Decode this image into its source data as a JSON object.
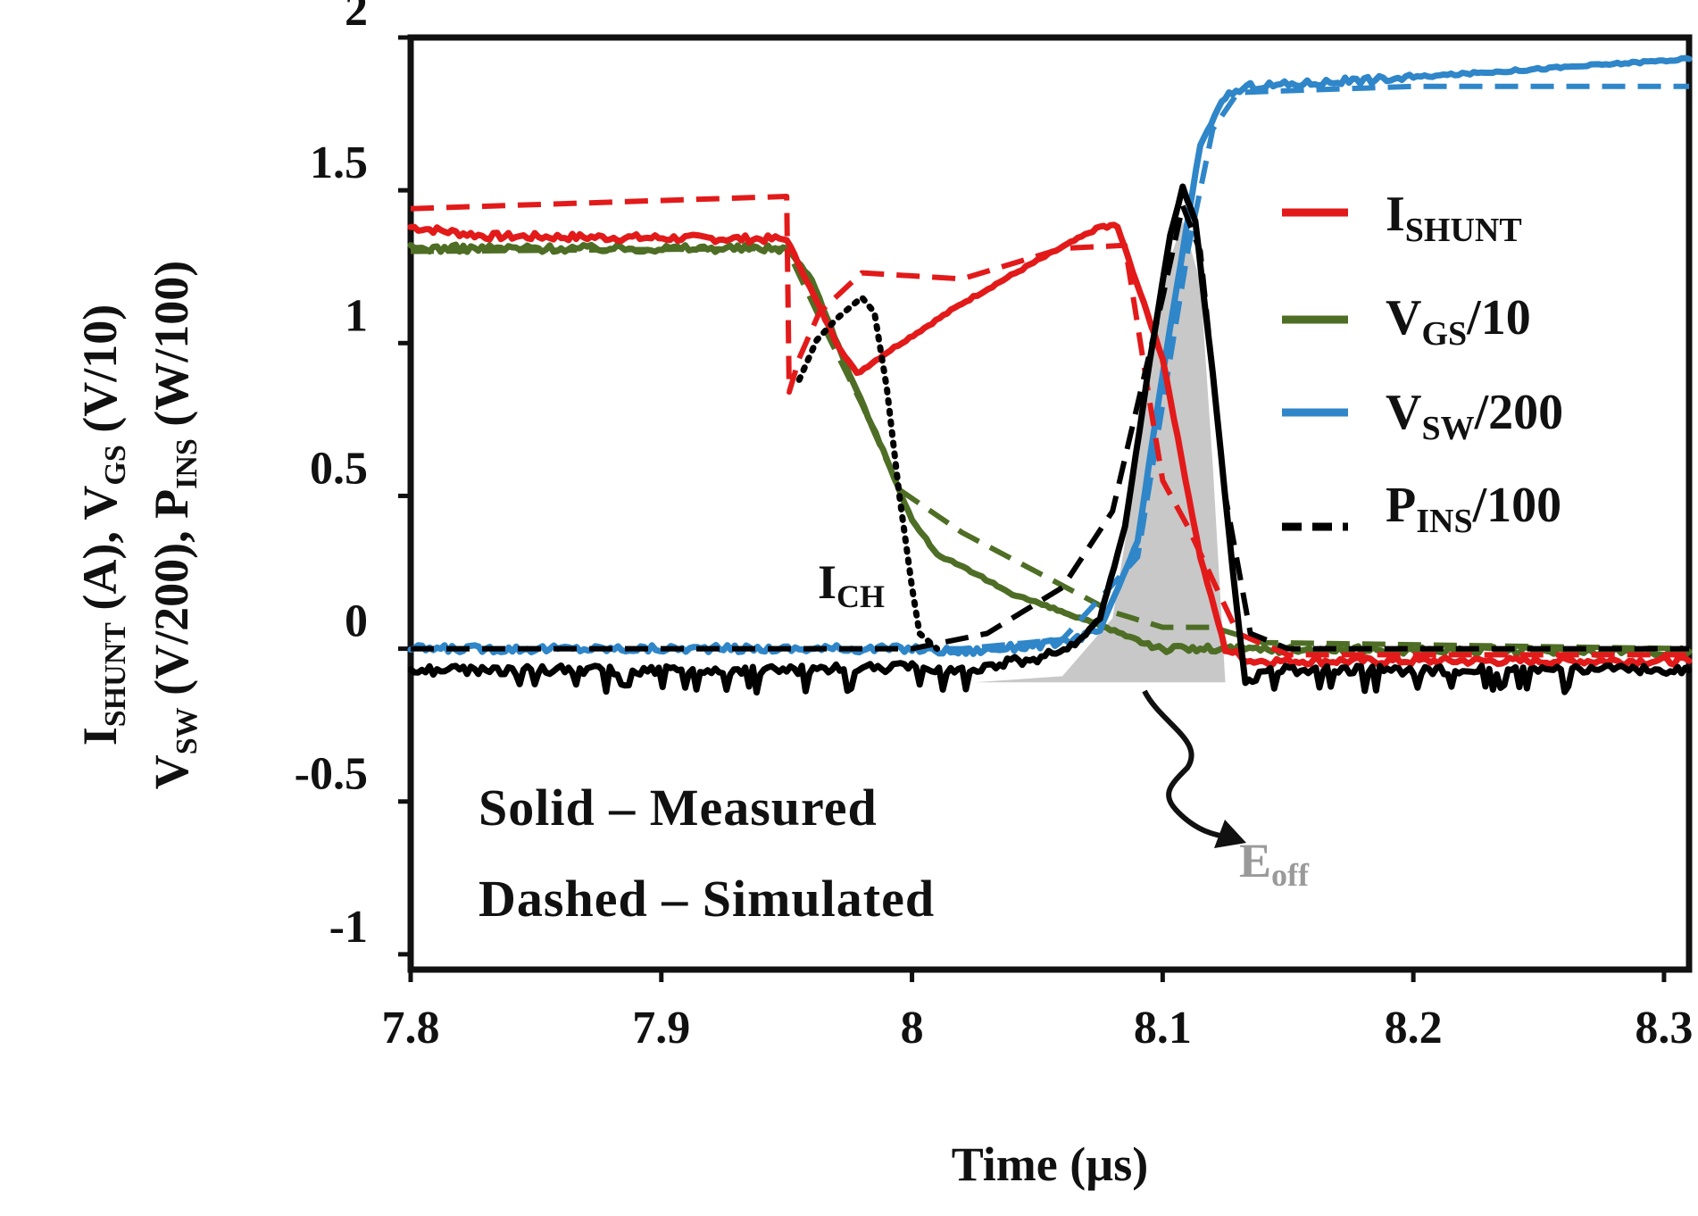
{
  "chart_data": {
    "type": "line",
    "x_axis": {
      "label": "Time (µs)",
      "range": [
        7.8,
        8.31
      ],
      "ticks": [
        7.8,
        7.9,
        8.0,
        8.1,
        8.2,
        8.3
      ],
      "tick_labels": [
        "7.8",
        "7.9",
        "8",
        "8.1",
        "8.2",
        "8.3"
      ]
    },
    "y_axis": {
      "label_line1": {
        "main1": "I",
        "sub1": "SHUNT",
        "main2": " (A),  V",
        "sub2": "GS",
        "main3": " (V/10)"
      },
      "label_line2": {
        "main1": "V",
        "sub1": "SW",
        "main2": " (V/200), P",
        "sub2": "INS",
        "main3": " (W/100)"
      },
      "range": [
        -1.05,
        2.0
      ],
      "ticks": [
        -1,
        -0.5,
        0,
        0.5,
        1,
        1.5,
        2
      ],
      "tick_labels": [
        "-1",
        "-0.5",
        "0",
        "0.5",
        "1",
        "1.5",
        "2"
      ]
    },
    "series": [
      {
        "name": "I_SHUNT",
        "legend_main": "I",
        "legend_sub": "SHUNT",
        "legend_suffix": "",
        "color": "#e21a1a",
        "style": "measured",
        "points": [
          [
            7.8,
            1.38
          ],
          [
            7.83,
            1.35
          ],
          [
            7.95,
            1.34
          ],
          [
            7.97,
            1.0
          ],
          [
            7.978,
            0.9
          ],
          [
            7.99,
            0.97
          ],
          [
            8.02,
            1.13
          ],
          [
            8.05,
            1.27
          ],
          [
            8.075,
            1.38
          ],
          [
            8.082,
            1.38
          ],
          [
            8.1,
            0.95
          ],
          [
            8.115,
            0.3
          ],
          [
            8.125,
            0.0
          ],
          [
            8.135,
            -0.04
          ],
          [
            8.31,
            -0.04
          ]
        ]
      },
      {
        "name": "I_SHUNT_sim",
        "color": "#e21a1a",
        "style": "simulated",
        "points": [
          [
            7.8,
            1.44
          ],
          [
            7.95,
            1.48
          ],
          [
            7.951,
            0.84
          ],
          [
            7.955,
            0.95
          ],
          [
            7.963,
            1.1
          ],
          [
            7.98,
            1.23
          ],
          [
            8.02,
            1.21
          ],
          [
            8.06,
            1.31
          ],
          [
            8.085,
            1.32
          ],
          [
            8.095,
            0.8
          ],
          [
            8.1,
            0.55
          ],
          [
            8.11,
            0.4
          ],
          [
            8.13,
            0.05
          ],
          [
            8.15,
            -0.02
          ],
          [
            8.31,
            -0.02
          ]
        ]
      },
      {
        "name": "V_GS/10",
        "legend_main": "V",
        "legend_sub": "GS",
        "legend_suffix": "/10",
        "color": "#4e6e25",
        "style": "measured",
        "points": [
          [
            7.8,
            1.31
          ],
          [
            7.95,
            1.31
          ],
          [
            7.96,
            1.21
          ],
          [
            7.975,
            0.9
          ],
          [
            7.99,
            0.62
          ],
          [
            8.0,
            0.42
          ],
          [
            8.01,
            0.31
          ],
          [
            8.04,
            0.18
          ],
          [
            8.07,
            0.09
          ],
          [
            8.09,
            0.03
          ],
          [
            8.1,
            0.0
          ],
          [
            8.31,
            -0.01
          ]
        ]
      },
      {
        "name": "V_GS_sim",
        "color": "#4e6e25",
        "style": "simulated",
        "points": [
          [
            7.8,
            1.3
          ],
          [
            7.95,
            1.31
          ],
          [
            7.965,
            1.05
          ],
          [
            7.98,
            0.8
          ],
          [
            7.995,
            0.52
          ],
          [
            8.02,
            0.38
          ],
          [
            8.05,
            0.25
          ],
          [
            8.08,
            0.12
          ],
          [
            8.1,
            0.07
          ],
          [
            8.12,
            0.07
          ],
          [
            8.14,
            0.02
          ],
          [
            8.31,
            0.0
          ]
        ]
      },
      {
        "name": "V_SW/200",
        "legend_main": "V",
        "legend_sub": "SW",
        "legend_suffix": "/200",
        "color": "#2f86c9",
        "style": "measured",
        "points": [
          [
            7.8,
            0.0
          ],
          [
            8.0,
            0.0
          ],
          [
            8.02,
            -0.01
          ],
          [
            8.06,
            0.02
          ],
          [
            8.075,
            0.06
          ],
          [
            8.09,
            0.35
          ],
          [
            8.1,
            0.9
          ],
          [
            8.11,
            1.4
          ],
          [
            8.115,
            1.65
          ],
          [
            8.125,
            1.81
          ],
          [
            8.135,
            1.84
          ],
          [
            8.2,
            1.87
          ],
          [
            8.31,
            1.93
          ]
        ]
      },
      {
        "name": "V_SW_sim",
        "color": "#2f86c9",
        "style": "simulated",
        "points": [
          [
            7.8,
            0.0
          ],
          [
            8.02,
            0.0
          ],
          [
            8.06,
            0.03
          ],
          [
            8.09,
            0.3
          ],
          [
            8.1,
            0.8
          ],
          [
            8.11,
            1.3
          ],
          [
            8.12,
            1.7
          ],
          [
            8.13,
            1.82
          ],
          [
            8.2,
            1.84
          ],
          [
            8.31,
            1.84
          ]
        ]
      },
      {
        "name": "P_INS/100",
        "legend_main": "P",
        "legend_sub": "INS",
        "legend_suffix": "/100",
        "color": "#000000",
        "style": "measured",
        "points": [
          [
            7.8,
            -0.07
          ],
          [
            7.95,
            -0.07
          ],
          [
            8.0,
            -0.06
          ],
          [
            8.02,
            -0.07
          ],
          [
            8.05,
            -0.03
          ],
          [
            8.065,
            0.01
          ],
          [
            8.075,
            0.1
          ],
          [
            8.085,
            0.4
          ],
          [
            8.095,
            0.95
          ],
          [
            8.103,
            1.35
          ],
          [
            8.108,
            1.51
          ],
          [
            8.113,
            1.4
          ],
          [
            8.12,
            0.9
          ],
          [
            8.128,
            0.25
          ],
          [
            8.133,
            -0.12
          ],
          [
            8.14,
            -0.07
          ],
          [
            8.31,
            -0.07
          ]
        ]
      },
      {
        "name": "P_INS_sim",
        "color": "#000000",
        "style": "simulated",
        "points": [
          [
            7.8,
            0.0
          ],
          [
            8.0,
            0.0
          ],
          [
            8.03,
            0.05
          ],
          [
            8.06,
            0.2
          ],
          [
            8.08,
            0.45
          ],
          [
            8.09,
            0.8
          ],
          [
            8.1,
            1.15
          ],
          [
            8.108,
            1.45
          ],
          [
            8.115,
            1.3
          ],
          [
            8.125,
            0.5
          ],
          [
            8.135,
            0.05
          ],
          [
            8.15,
            0.0
          ],
          [
            8.31,
            0.0
          ]
        ]
      },
      {
        "name": "I_CH",
        "color": "#000000",
        "style": "dotted",
        "points": [
          [
            7.955,
            0.88
          ],
          [
            7.962,
            1.01
          ],
          [
            7.97,
            1.08
          ],
          [
            7.98,
            1.15
          ],
          [
            7.985,
            1.1
          ],
          [
            7.99,
            0.85
          ],
          [
            7.995,
            0.5
          ],
          [
            8.0,
            0.2
          ],
          [
            8.003,
            0.05
          ],
          [
            8.01,
            0.0
          ]
        ]
      }
    ],
    "annotations": {
      "ich_main": "I",
      "ich_sub": "CH",
      "eoff_main": "E",
      "eoff_sub": "off",
      "note_line1": "Solid – Measured",
      "note_line2": "Dashed – Simulated"
    },
    "eoff_area": {
      "x_start": 8.025,
      "x_end": 8.125,
      "profile": [
        [
          8.025,
          -0.11
        ],
        [
          8.06,
          -0.09
        ],
        [
          8.08,
          0.1
        ],
        [
          8.09,
          0.6
        ],
        [
          8.1,
          1.2
        ],
        [
          8.108,
          1.4
        ],
        [
          8.115,
          1.2
        ],
        [
          8.12,
          0.6
        ],
        [
          8.125,
          -0.11
        ]
      ],
      "color": "#c8c8c8"
    }
  }
}
